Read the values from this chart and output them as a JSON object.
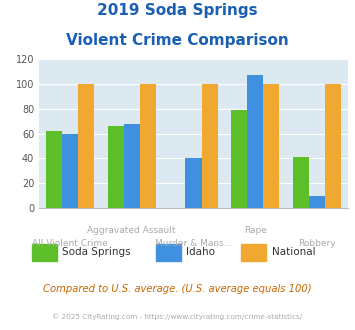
{
  "title_line1": "2019 Soda Springs",
  "title_line2": "Violent Crime Comparison",
  "categories": [
    "All Violent Crime",
    "Aggravated Assault",
    "Murder & Mans...",
    "Rape",
    "Robbery"
  ],
  "xtick_row1": [
    "",
    "Aggravated Assault",
    "Assault",
    "",
    "Rape",
    "",
    "Robbery"
  ],
  "xtick_row2": [
    "All Violent Crime",
    "",
    "Murder & Mans...",
    "",
    "",
    "",
    ""
  ],
  "xlabels_top": [
    "",
    "Aggravated Assault",
    "",
    "Rape",
    ""
  ],
  "xlabels_bot": [
    "All Violent Crime",
    "Murder & Mans...",
    "",
    "",
    "Robbery"
  ],
  "soda_springs": [
    62,
    66,
    0,
    79,
    41
  ],
  "idaho": [
    60,
    68,
    40,
    107,
    10
  ],
  "national": [
    100,
    100,
    100,
    100,
    100
  ],
  "bar_colors": {
    "soda_springs": "#5cbf2a",
    "idaho": "#4090e0",
    "national": "#f0a830"
  },
  "ylim": [
    0,
    120
  ],
  "yticks": [
    0,
    20,
    40,
    60,
    80,
    100,
    120
  ],
  "title_color": "#1a5fb4",
  "background_color": "#dce9f0",
  "note_text": "Compared to U.S. average. (U.S. average equals 100)",
  "footer_text": "© 2025 CityRating.com - https://www.cityrating.com/crime-statistics/",
  "legend_labels": [
    "Soda Springs",
    "Idaho",
    "National"
  ],
  "note_color": "#cc6600",
  "footer_color": "#aaaaaa",
  "tick_label_color": "#aaaaaa"
}
